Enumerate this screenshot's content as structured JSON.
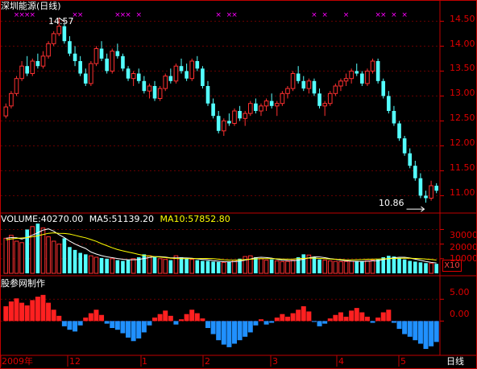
{
  "header": {
    "title": "深圳能源(日线)",
    "title_color": "#ffffff"
  },
  "price_panel": {
    "y_ticks": [
      "14.50",
      "14.00",
      "13.50",
      "13.00",
      "12.50",
      "12.00",
      "11.50",
      "11.00"
    ],
    "y_values": [
      14.5,
      14.0,
      13.5,
      13.0,
      12.5,
      12.0,
      11.5,
      11.0
    ],
    "high_annotation": "14.57",
    "low_annotation": "10.86",
    "marker_glyph": "×",
    "up_color": "#ff3030",
    "down_color": "#54ffff",
    "marker_color": "#ff00ff"
  },
  "volume_panel": {
    "volume_label": "VOLUME:40270.00",
    "ma5_label": "MA5:51139.20",
    "ma10_label": "MA10:57852.80",
    "volume_label_color": "#ffffff",
    "ma5_color": "#ffffff",
    "ma10_color": "#ffff00",
    "y_ticks": [
      "30000",
      "20000",
      "10000"
    ],
    "unit_badge": "X10"
  },
  "indicator_panel": {
    "title": "股参网制作",
    "y_ticks": [
      "5.00",
      "0.00"
    ],
    "pos_color": "#ff2020",
    "neg_color": "#2090ff"
  },
  "x_axis": {
    "labels": [
      "2009年",
      "12",
      "1",
      "2",
      "3",
      "4",
      "5"
    ],
    "period_button": "日线"
  },
  "chart_data": {
    "type": "candlestick",
    "price_range": [
      10.7,
      14.7
    ],
    "high": 14.57,
    "low": 10.86,
    "candles": [
      [
        12.6,
        12.85,
        12.55,
        12.78
      ],
      [
        12.8,
        13.1,
        12.75,
        13.05
      ],
      [
        13.05,
        13.4,
        13.0,
        13.35
      ],
      [
        13.35,
        13.7,
        13.3,
        13.6
      ],
      [
        13.6,
        13.8,
        13.4,
        13.45
      ],
      [
        13.45,
        13.75,
        13.4,
        13.7
      ],
      [
        13.7,
        13.85,
        13.55,
        13.6
      ],
      [
        13.6,
        13.9,
        13.55,
        13.8
      ],
      [
        13.8,
        14.1,
        13.75,
        14.05
      ],
      [
        14.05,
        14.3,
        14.0,
        14.25
      ],
      [
        14.25,
        14.57,
        14.2,
        14.4
      ],
      [
        14.4,
        14.45,
        14.05,
        14.1
      ],
      [
        14.1,
        14.2,
        13.8,
        13.85
      ],
      [
        13.85,
        14.0,
        13.6,
        13.7
      ],
      [
        13.7,
        13.8,
        13.4,
        13.45
      ],
      [
        13.45,
        13.55,
        13.2,
        13.25
      ],
      [
        13.25,
        13.7,
        13.2,
        13.65
      ],
      [
        13.65,
        14.0,
        13.6,
        13.95
      ],
      [
        13.95,
        14.1,
        13.7,
        13.75
      ],
      [
        13.75,
        13.85,
        13.45,
        13.5
      ],
      [
        13.5,
        13.95,
        13.45,
        13.9
      ],
      [
        13.9,
        14.05,
        13.75,
        13.8
      ],
      [
        13.8,
        13.85,
        13.5,
        13.55
      ],
      [
        13.55,
        13.6,
        13.3,
        13.35
      ],
      [
        13.35,
        13.5,
        13.2,
        13.45
      ],
      [
        13.45,
        13.55,
        13.25,
        13.3
      ],
      [
        13.3,
        13.4,
        13.05,
        13.1
      ],
      [
        13.1,
        13.25,
        12.95,
        13.2
      ],
      [
        13.2,
        13.3,
        12.9,
        12.95
      ],
      [
        12.95,
        13.2,
        12.9,
        13.15
      ],
      [
        13.15,
        13.45,
        13.1,
        13.4
      ],
      [
        13.4,
        13.55,
        13.25,
        13.3
      ],
      [
        13.3,
        13.65,
        13.25,
        13.6
      ],
      [
        13.6,
        13.75,
        13.45,
        13.5
      ],
      [
        13.5,
        13.65,
        13.3,
        13.35
      ],
      [
        13.35,
        13.75,
        13.3,
        13.7
      ],
      [
        13.7,
        13.8,
        13.5,
        13.55
      ],
      [
        13.55,
        13.6,
        13.15,
        13.2
      ],
      [
        13.2,
        13.3,
        12.8,
        12.85
      ],
      [
        12.85,
        12.95,
        12.55,
        12.6
      ],
      [
        12.6,
        12.7,
        12.25,
        12.3
      ],
      [
        12.3,
        12.55,
        12.2,
        12.5
      ],
      [
        12.5,
        12.65,
        12.4,
        12.45
      ],
      [
        12.45,
        12.75,
        12.4,
        12.7
      ],
      [
        12.7,
        12.8,
        12.5,
        12.55
      ],
      [
        12.55,
        12.7,
        12.4,
        12.65
      ],
      [
        12.65,
        12.9,
        12.6,
        12.85
      ],
      [
        12.85,
        12.95,
        12.65,
        12.7
      ],
      [
        12.7,
        12.85,
        12.6,
        12.8
      ],
      [
        12.8,
        12.95,
        12.7,
        12.9
      ],
      [
        12.9,
        13.05,
        12.75,
        12.8
      ],
      [
        12.8,
        12.9,
        12.6,
        12.85
      ],
      [
        12.85,
        13.1,
        12.8,
        13.05
      ],
      [
        13.05,
        13.2,
        12.95,
        13.15
      ],
      [
        13.15,
        13.5,
        13.1,
        13.45
      ],
      [
        13.45,
        13.6,
        13.25,
        13.3
      ],
      [
        13.3,
        13.4,
        13.1,
        13.15
      ],
      [
        13.15,
        13.35,
        13.05,
        13.3
      ],
      [
        13.3,
        13.35,
        13.0,
        13.05
      ],
      [
        13.05,
        13.15,
        12.75,
        12.8
      ],
      [
        12.8,
        12.9,
        12.6,
        12.85
      ],
      [
        12.85,
        13.1,
        12.8,
        13.05
      ],
      [
        13.05,
        13.25,
        13.0,
        13.2
      ],
      [
        13.2,
        13.35,
        13.1,
        13.3
      ],
      [
        13.3,
        13.45,
        13.2,
        13.35
      ],
      [
        13.35,
        13.55,
        13.25,
        13.5
      ],
      [
        13.5,
        13.65,
        13.4,
        13.45
      ],
      [
        13.45,
        13.5,
        13.2,
        13.25
      ],
      [
        13.25,
        13.55,
        13.2,
        13.5
      ],
      [
        13.5,
        13.75,
        13.45,
        13.7
      ],
      [
        13.7,
        13.75,
        13.25,
        13.3
      ],
      [
        13.3,
        13.35,
        12.95,
        13.0
      ],
      [
        13.0,
        13.1,
        12.65,
        12.7
      ],
      [
        12.7,
        12.8,
        12.4,
        12.45
      ],
      [
        12.45,
        12.5,
        12.1,
        12.15
      ],
      [
        12.15,
        12.2,
        11.8,
        11.85
      ],
      [
        11.85,
        11.95,
        11.55,
        11.6
      ],
      [
        11.6,
        11.7,
        11.3,
        11.35
      ],
      [
        11.35,
        11.45,
        10.95,
        11.0
      ],
      [
        11.0,
        11.1,
        10.86,
        10.95
      ],
      [
        10.95,
        11.3,
        10.9,
        11.2
      ],
      [
        11.2,
        11.25,
        11.05,
        11.1
      ]
    ],
    "markers_x_index": [
      2,
      3,
      4,
      5,
      13,
      14,
      21,
      22,
      23,
      25,
      40,
      42,
      43,
      58,
      60,
      64,
      70,
      71,
      73,
      75
    ],
    "volume": [
      24000,
      26000,
      22000,
      21000,
      30000,
      32000,
      34000,
      31000,
      25000,
      22000,
      20000,
      24000,
      18000,
      16000,
      14000,
      13000,
      12000,
      11000,
      10500,
      10000,
      10000,
      9000,
      8500,
      9000,
      10000,
      11000,
      13000,
      12000,
      11000,
      10000,
      9500,
      9000,
      12000,
      11000,
      10000,
      9500,
      9000,
      8500,
      8500,
      8000,
      7800,
      7500,
      8000,
      9000,
      10000,
      11500,
      12000,
      11000,
      10000,
      9000,
      9500,
      8500,
      8000,
      8200,
      9000,
      11000,
      13000,
      12500,
      11000,
      9500,
      9000,
      8500,
      8200,
      8000,
      8100,
      8300,
      8400,
      8200,
      8600,
      9000,
      9500,
      11000,
      12000,
      11500,
      10500,
      9500,
      8500,
      8000,
      7500,
      7000,
      6800,
      6500
    ],
    "ma5": [
      24000,
      24500,
      24300,
      23500,
      24600,
      26200,
      27800,
      29600,
      30400,
      28800,
      26400,
      24400,
      22000,
      20000,
      18400,
      17000,
      14600,
      13200,
      12100,
      11300,
      10700,
      10100,
      9600,
      9300,
      9300,
      9500,
      10200,
      10800,
      11400,
      11400,
      11100,
      10600,
      10600,
      10600,
      10500,
      10300,
      9900,
      9500,
      9200,
      8700,
      8300,
      8000,
      7900,
      8000,
      8400,
      9000,
      9800,
      10700,
      11000,
      10800,
      10400,
      9600,
      9000,
      8800,
      8700,
      9000,
      9700,
      10600,
      11300,
      11200,
      10700,
      10000,
      9600,
      9000,
      8600,
      8300,
      8200,
      8200,
      8300,
      8500,
      8700,
      9400,
      10100,
      10600,
      11000,
      11000,
      10500,
      9700,
      8900,
      8100,
      7500,
      7100
    ],
    "ma10": [
      23000,
      23500,
      23900,
      24200,
      24500,
      25000,
      25700,
      26500,
      27400,
      27700,
      27400,
      27300,
      26900,
      26000,
      25100,
      24300,
      23100,
      21900,
      20300,
      18900,
      17500,
      16300,
      15400,
      14600,
      13800,
      12900,
      12200,
      11800,
      11400,
      11100,
      10800,
      10400,
      10100,
      10000,
      10000,
      10000,
      10100,
      10100,
      10200,
      10000,
      9700,
      9300,
      9100,
      9000,
      9200,
      9400,
      9600,
      9900,
      10000,
      10000,
      10000,
      9900,
      9800,
      9700,
      9800,
      10000,
      10200,
      10400,
      10400,
      10200,
      10000,
      9800,
      9600,
      9400,
      9200,
      9200,
      9300,
      9400,
      9600,
      9700,
      9800,
      9900,
      10000,
      10200,
      10300,
      10400,
      10300,
      10200,
      10000,
      9800,
      9500,
      9100
    ],
    "volume_range": [
      0,
      33000
    ],
    "indicator": [
      3.4,
      4.5,
      5.2,
      4.2,
      3.6,
      4.8,
      5.6,
      6.0,
      4.2,
      2.6,
      1.2,
      -1.2,
      -2.0,
      -2.4,
      -1.0,
      0.8,
      1.8,
      2.6,
      1.4,
      -0.6,
      -1.6,
      -2.0,
      -2.8,
      -3.8,
      -4.6,
      -4.0,
      -2.6,
      -1.0,
      0.8,
      1.6,
      2.4,
      1.2,
      -0.8,
      0.4,
      1.6,
      2.6,
      1.8,
      0.6,
      -1.6,
      -3.0,
      -4.4,
      -5.4,
      -6.0,
      -5.2,
      -4.4,
      -3.6,
      -2.6,
      -1.0,
      0.4,
      -0.8,
      -0.4,
      0.8,
      1.6,
      1.0,
      1.8,
      2.6,
      3.4,
      2.2,
      -0.2,
      -1.2,
      -0.6,
      0.6,
      1.4,
      2.0,
      1.0,
      2.4,
      3.0,
      2.0,
      1.0,
      -0.4,
      0.8,
      2.0,
      2.6,
      -0.4,
      -1.8,
      -3.0,
      -3.6,
      -4.4,
      -5.2,
      -6.4,
      -5.8,
      -4.8
    ],
    "indicator_range": [
      -7.5,
      8.0
    ]
  }
}
